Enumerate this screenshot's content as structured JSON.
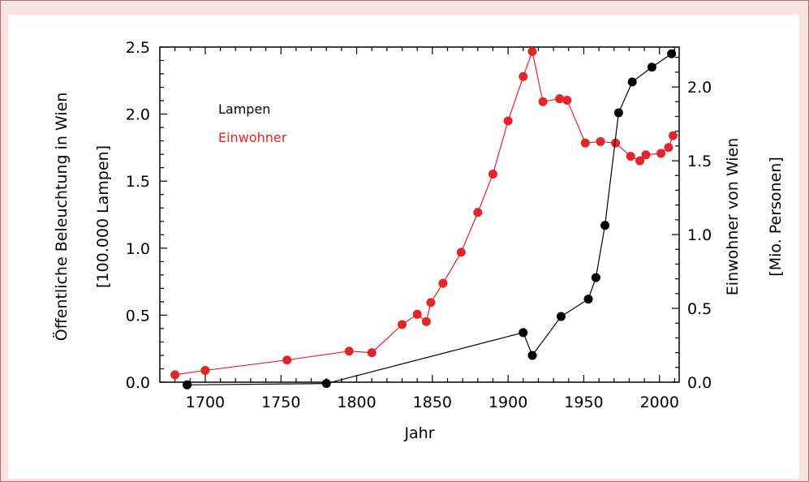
{
  "chart_data": {
    "type": "line",
    "xlabel": "Jahr",
    "ylabel_left": [
      "Öffentliche Beleuchtung in Wien",
      "[100.000 Lampen]"
    ],
    "ylabel_right": [
      "Einwohner von Wien",
      "[Mio. Personen]"
    ],
    "xlim": [
      1670,
      2013
    ],
    "ylim_left": [
      0,
      2.5
    ],
    "ylim_right": [
      0,
      2.27
    ],
    "x_ticks": [
      1700,
      1750,
      1800,
      1850,
      1900,
      1950,
      2000
    ],
    "y_left_ticks": [
      "0.0",
      "0.5",
      "1.0",
      "1.5",
      "2.0",
      "2.5"
    ],
    "y_right_ticks": [
      "0.0",
      "0.5",
      "1.0",
      "1.5",
      "2.0"
    ],
    "legend_position": "top-left",
    "series": [
      {
        "name": "Lampen",
        "axis": "left",
        "color": "#000000",
        "points": [
          [
            1688,
            -0.02
          ],
          [
            1780,
            -0.01
          ],
          [
            1910,
            0.37
          ],
          [
            1916,
            0.2
          ],
          [
            1935,
            0.49
          ],
          [
            1953,
            0.62
          ],
          [
            1958,
            0.78
          ],
          [
            1964,
            1.17
          ],
          [
            1973,
            2.01
          ],
          [
            1982,
            2.24
          ],
          [
            1995,
            2.35
          ],
          [
            2008,
            2.45
          ]
        ]
      },
      {
        "name": "Einwohner",
        "axis": "right",
        "color": "#e32428",
        "points": [
          [
            1680,
            0.05
          ],
          [
            1700,
            0.08
          ],
          [
            1754,
            0.15
          ],
          [
            1795,
            0.21
          ],
          [
            1810,
            0.2
          ],
          [
            1830,
            0.39
          ],
          [
            1840,
            0.46
          ],
          [
            1846,
            0.41
          ],
          [
            1849,
            0.54
          ],
          [
            1857,
            0.67
          ],
          [
            1869,
            0.88
          ],
          [
            1880,
            1.15
          ],
          [
            1890,
            1.41
          ],
          [
            1900,
            1.77
          ],
          [
            1910,
            2.07
          ],
          [
            1916,
            2.24
          ],
          [
            1923,
            1.9
          ],
          [
            1934,
            1.92
          ],
          [
            1939,
            1.91
          ],
          [
            1951,
            1.62
          ],
          [
            1961,
            1.63
          ],
          [
            1971,
            1.62
          ],
          [
            1981,
            1.53
          ],
          [
            1987,
            1.5
          ],
          [
            1991,
            1.54
          ],
          [
            2001,
            1.55
          ],
          [
            2006,
            1.59
          ],
          [
            2009,
            1.67
          ]
        ]
      }
    ]
  }
}
